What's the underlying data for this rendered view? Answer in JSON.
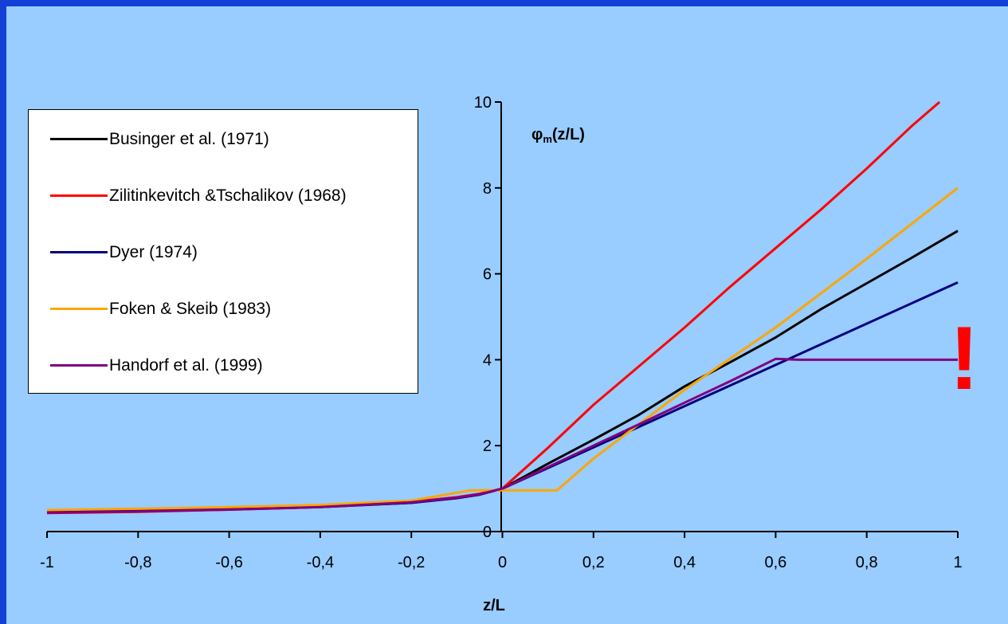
{
  "chart_data": {
    "type": "line",
    "title": "",
    "xlabel": "z/L",
    "ylabel": "φm(z/L)",
    "ylabel_main": "φ",
    "ylabel_sub": "m",
    "ylabel_tail": "(z/L)",
    "xlim": [
      -1,
      1
    ],
    "ylim": [
      0,
      10
    ],
    "xticks": [
      -1,
      -0.8,
      -0.6,
      -0.4,
      -0.2,
      0,
      0.2,
      0.4,
      0.6,
      0.8,
      1
    ],
    "xtick_labels": [
      "-1",
      "-0,8",
      "-0,6",
      "-0,4",
      "-0,2",
      "0",
      "0,2",
      "0,4",
      "0,6",
      "0,8",
      "1"
    ],
    "yticks": [
      0,
      2,
      4,
      6,
      8,
      10
    ],
    "ytick_labels": [
      "0",
      "2",
      "4",
      "6",
      "8",
      "10"
    ],
    "grid": false,
    "legend_position": "top-left",
    "annotation": "!",
    "series": [
      {
        "name": "Businger et al. (1971)",
        "color": "#000000",
        "points": [
          [
            -1,
            0.45
          ],
          [
            -0.8,
            0.48
          ],
          [
            -0.6,
            0.52
          ],
          [
            -0.4,
            0.57
          ],
          [
            -0.2,
            0.67
          ],
          [
            -0.1,
            0.78
          ],
          [
            -0.05,
            0.86
          ],
          [
            0,
            1
          ],
          [
            0.1,
            1.58
          ],
          [
            0.2,
            2.14
          ],
          [
            0.3,
            2.72
          ],
          [
            0.4,
            3.38
          ],
          [
            0.5,
            3.94
          ],
          [
            0.6,
            4.52
          ],
          [
            0.7,
            5.18
          ],
          [
            0.8,
            5.78
          ],
          [
            0.9,
            6.38
          ],
          [
            1,
            7
          ]
        ]
      },
      {
        "name": "Zilitinkevitch &Tschalikov (1968)",
        "color": "#ff0000",
        "points": [
          [
            -1,
            0.43
          ],
          [
            -0.8,
            0.46
          ],
          [
            -0.6,
            0.51
          ],
          [
            -0.4,
            0.57
          ],
          [
            -0.2,
            0.69
          ],
          [
            -0.1,
            0.8
          ],
          [
            -0.05,
            0.88
          ],
          [
            0,
            1
          ],
          [
            0.1,
            1.95
          ],
          [
            0.2,
            2.95
          ],
          [
            0.3,
            3.85
          ],
          [
            0.4,
            4.75
          ],
          [
            0.5,
            5.7
          ],
          [
            0.6,
            6.6
          ],
          [
            0.7,
            7.5
          ],
          [
            0.8,
            8.45
          ],
          [
            0.9,
            9.45
          ],
          [
            0.96,
            10
          ]
        ]
      },
      {
        "name": "Dyer (1974)",
        "color": "#000080",
        "points": [
          [
            -1,
            0.45
          ],
          [
            -0.8,
            0.49
          ],
          [
            -0.6,
            0.53
          ],
          [
            -0.4,
            0.58
          ],
          [
            -0.2,
            0.67
          ],
          [
            -0.1,
            0.78
          ],
          [
            -0.05,
            0.86
          ],
          [
            0,
            1
          ],
          [
            0.1,
            1.48
          ],
          [
            0.2,
            1.96
          ],
          [
            0.3,
            2.44
          ],
          [
            0.4,
            2.92
          ],
          [
            0.5,
            3.4
          ],
          [
            0.6,
            3.88
          ],
          [
            0.7,
            4.36
          ],
          [
            0.8,
            4.84
          ],
          [
            0.9,
            5.32
          ],
          [
            1,
            5.8
          ]
        ]
      },
      {
        "name": "Foken & Skeib (1983)",
        "color": "#ffa500",
        "points": [
          [
            -1,
            0.5
          ],
          [
            -0.8,
            0.53
          ],
          [
            -0.6,
            0.57
          ],
          [
            -0.4,
            0.62
          ],
          [
            -0.2,
            0.72
          ],
          [
            -0.07,
            0.96
          ],
          [
            0,
            0.96
          ],
          [
            0.12,
            0.96
          ],
          [
            0.2,
            1.7
          ],
          [
            0.4,
            3.3
          ],
          [
            0.6,
            4.75
          ],
          [
            0.8,
            6.35
          ],
          [
            1,
            8
          ]
        ]
      },
      {
        "name": "Handorf et al. (1999)",
        "color": "#800080",
        "points": [
          [
            -1,
            0.44
          ],
          [
            -0.8,
            0.47
          ],
          [
            -0.6,
            0.51
          ],
          [
            -0.4,
            0.57
          ],
          [
            -0.2,
            0.68
          ],
          [
            -0.1,
            0.79
          ],
          [
            -0.05,
            0.87
          ],
          [
            0,
            1
          ],
          [
            0.1,
            1.5
          ],
          [
            0.2,
            2
          ],
          [
            0.3,
            2.5
          ],
          [
            0.4,
            3
          ],
          [
            0.5,
            3.5
          ],
          [
            0.6,
            4.02
          ],
          [
            0.65,
            4
          ],
          [
            0.8,
            4
          ],
          [
            1,
            4
          ]
        ]
      }
    ]
  }
}
